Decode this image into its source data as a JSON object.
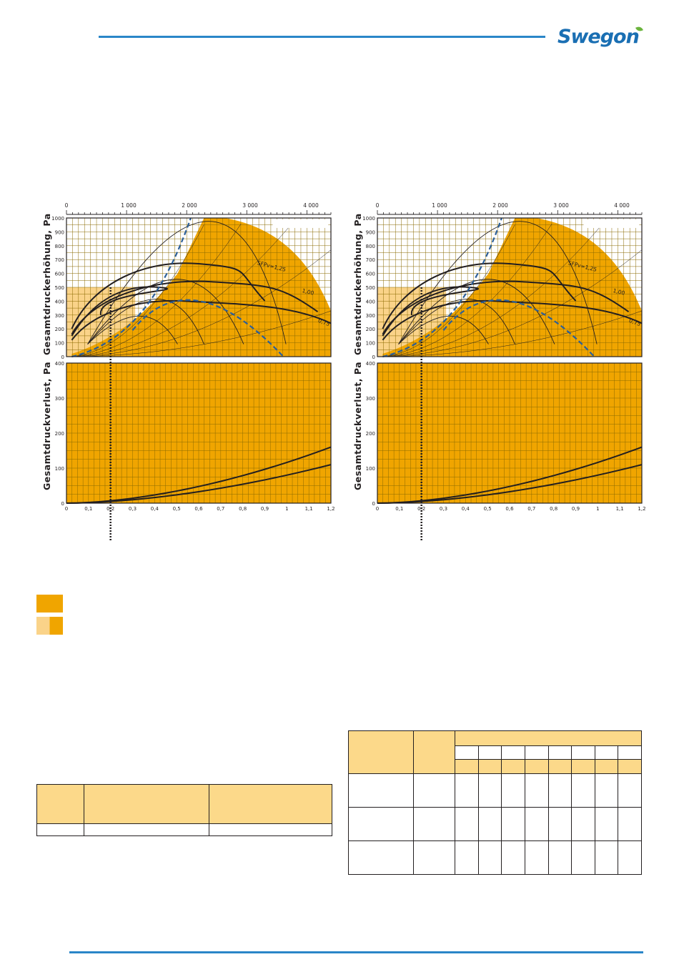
{
  "header": {
    "logo_text": "Swegon"
  },
  "charts": [
    {
      "upper_ylabel": "Gesamtdruckerhöhung, Pa",
      "lower_ylabel": "Gesamtdruckverlust, Pa",
      "top_ticks": [
        "0",
        "1 000",
        "2 000",
        "3 000",
        "4 000"
      ],
      "upper_yticks": [
        "0",
        "100",
        "200",
        "300",
        "400",
        "500",
        "600",
        "700",
        "800",
        "900",
        "1000"
      ],
      "lower_yticks": [
        "0",
        "100",
        "200",
        "300",
        "400"
      ],
      "bottom_ticks": [
        "0",
        "0,1",
        "0,2",
        "0,3",
        "0,4",
        "0,5",
        "0,6",
        "0,7",
        "0,8",
        "0,9",
        "1",
        "1,1",
        "1,2"
      ],
      "sfp_labels": [
        "SFPv=1,25",
        "1,00",
        "0,75"
      ]
    },
    {
      "upper_ylabel": "Gesamtdruckerhöhung, Pa",
      "lower_ylabel": "Gesamtdruckverlust, Pa",
      "top_ticks": [
        "0",
        "1 000",
        "2 000",
        "3 000",
        "4 000"
      ],
      "upper_yticks": [
        "0",
        "100",
        "200",
        "300",
        "400",
        "500",
        "600",
        "700",
        "800",
        "900",
        "1000"
      ],
      "lower_yticks": [
        "0",
        "100",
        "200",
        "300",
        "400"
      ],
      "bottom_ticks": [
        "0",
        "0,1",
        "0,2",
        "0,3",
        "0,4",
        "0,5",
        "0,6",
        "0,7",
        "0,8",
        "0,9",
        "1",
        "1,1",
        "1,2"
      ],
      "sfp_labels": [
        "SFPv=1,25",
        "1,00",
        "0,75"
      ]
    }
  ],
  "colors": {
    "accent_blue": "#2a86c8",
    "fill_orange": "#f0a500",
    "fill_light": "#fad389",
    "grid": "#8a6a00"
  },
  "legend": [
    {
      "swatch": "orange"
    },
    {
      "swatch": "light-orange-split"
    }
  ]
}
